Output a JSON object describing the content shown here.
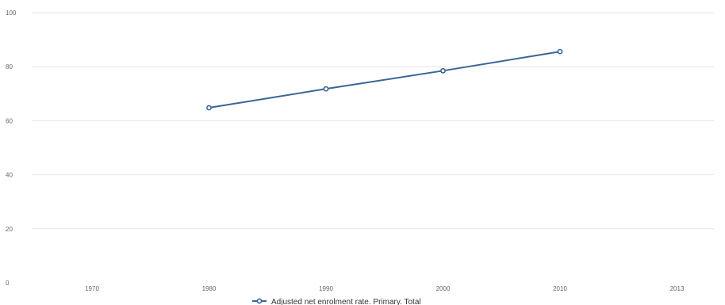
{
  "chart_data": {
    "type": "line",
    "x_categories": [
      "1970",
      "1980",
      "1990",
      "2000",
      "2010",
      "2013"
    ],
    "y_ticks": [
      "0",
      "20",
      "40",
      "60",
      "80",
      "100"
    ],
    "ylim": [
      0,
      100
    ],
    "grid": true,
    "legend_position": "bottom-center",
    "series": [
      {
        "name": "Adjusted net enrolment rate. Primary. Total",
        "color": "#3b6597",
        "points": [
          {
            "x": "1980",
            "y": 64.8
          },
          {
            "x": "1990",
            "y": 71.8
          },
          {
            "x": "2000",
            "y": 78.5
          },
          {
            "x": "2010",
            "y": 85.6
          }
        ]
      }
    ]
  },
  "colors": {
    "grid": "#e6e6e6",
    "axis_text": "#666666",
    "series": "#3b6597"
  }
}
